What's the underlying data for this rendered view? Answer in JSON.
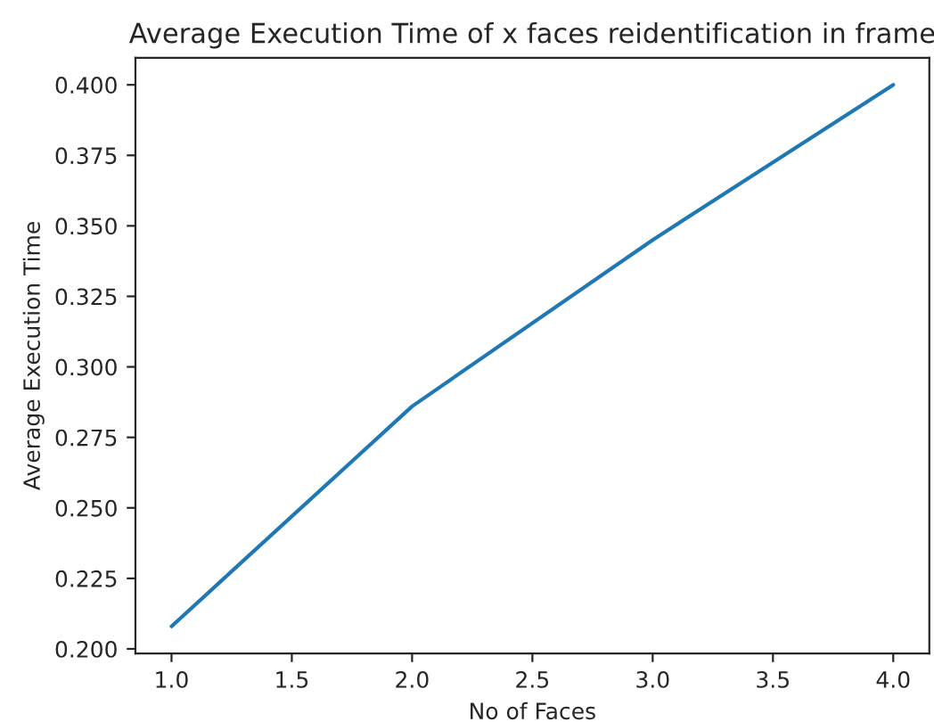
{
  "chart_data": {
    "type": "line",
    "title": "Average Execution Time of x faces reidentification in frame",
    "xlabel": "No of Faces",
    "ylabel": "Average Execution Time",
    "x": [
      1,
      2,
      3,
      4
    ],
    "series": [
      {
        "color": "#1f77b4",
        "values": [
          0.208,
          0.286,
          0.345,
          0.4
        ]
      }
    ],
    "xlim": [
      0.85,
      4.15
    ],
    "xticks": [
      {
        "value": 1,
        "label": "1.0"
      },
      {
        "value": 1.5,
        "label": "1.5"
      },
      {
        "value": 2,
        "label": "2.0"
      },
      {
        "value": 2.5,
        "label": "2.5"
      },
      {
        "value": 3,
        "label": "3.0"
      },
      {
        "value": 3.5,
        "label": "3.5"
      },
      {
        "value": 4,
        "label": "4.0"
      }
    ],
    "ylim": [
      0.1984,
      0.4096
    ],
    "yticks": [
      {
        "value": 0.2,
        "label": "0.200"
      },
      {
        "value": 0.225,
        "label": "0.225"
      },
      {
        "value": 0.25,
        "label": "0.250"
      },
      {
        "value": 0.275,
        "label": "0.275"
      },
      {
        "value": 0.3,
        "label": "0.300"
      },
      {
        "value": 0.325,
        "label": "0.325"
      },
      {
        "value": 0.35,
        "label": "0.350"
      },
      {
        "value": 0.375,
        "label": "0.375"
      },
      {
        "value": 0.4,
        "label": "0.400"
      }
    ],
    "grid": false,
    "legend": false
  }
}
